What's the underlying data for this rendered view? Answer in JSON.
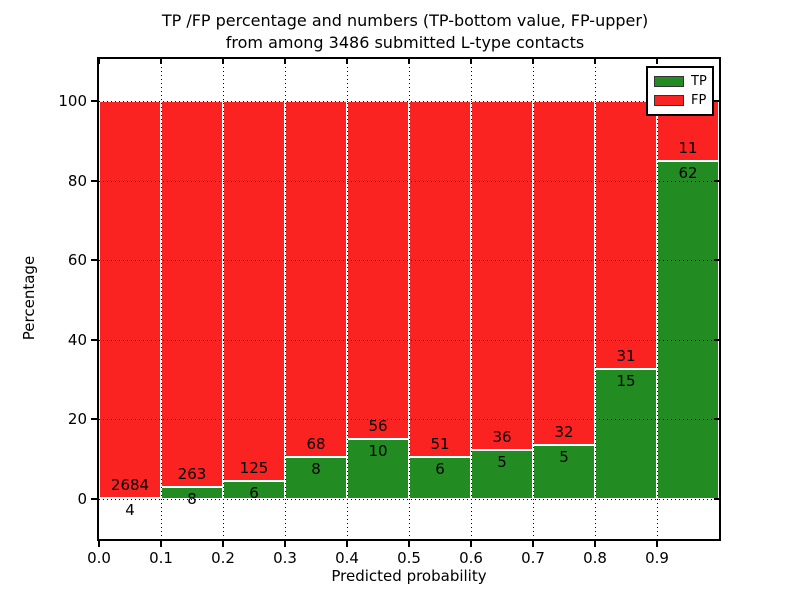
{
  "chart_data": {
    "type": "bar",
    "stacked": true,
    "normalized_to_percent": true,
    "title_lines": [
      "TP /FP percentage and numbers (TP-bottom value, FP-upper)",
      "from among 3486 submitted L-type contacts"
    ],
    "total_contacts": 3486,
    "xlabel": "Predicted probability",
    "ylabel": "Percentage",
    "categories": [
      "0.0-0.1",
      "0.1-0.2",
      "0.2-0.3",
      "0.3-0.4",
      "0.4-0.5",
      "0.5-0.6",
      "0.6-0.7",
      "0.7-0.8",
      "0.8-0.9",
      "0.9-1.0"
    ],
    "series": [
      {
        "name": "TP",
        "color": "#228b22",
        "values": [
          4,
          8,
          6,
          8,
          10,
          6,
          5,
          5,
          15,
          62
        ]
      },
      {
        "name": "FP",
        "color": "#fb2222",
        "values": [
          2684,
          263,
          125,
          68,
          56,
          51,
          36,
          32,
          31,
          11
        ]
      }
    ],
    "tp_percent": [
      0.15,
      2.95,
      4.58,
      10.53,
      15.15,
      10.53,
      12.2,
      13.51,
      32.61,
      84.93
    ],
    "x_ticks": [
      "0.0",
      "0.1",
      "0.2",
      "0.3",
      "0.4",
      "0.5",
      "0.6",
      "0.7",
      "0.8",
      "0.9"
    ],
    "y_ticks": [
      0,
      20,
      40,
      60,
      80,
      100
    ],
    "xlim": [
      0.0,
      1.0
    ],
    "ylim": [
      -10,
      110.5
    ],
    "grid": "dotted, drawn above bars",
    "legend_position": "upper right",
    "legend_entries": [
      "TP",
      "FP"
    ]
  }
}
